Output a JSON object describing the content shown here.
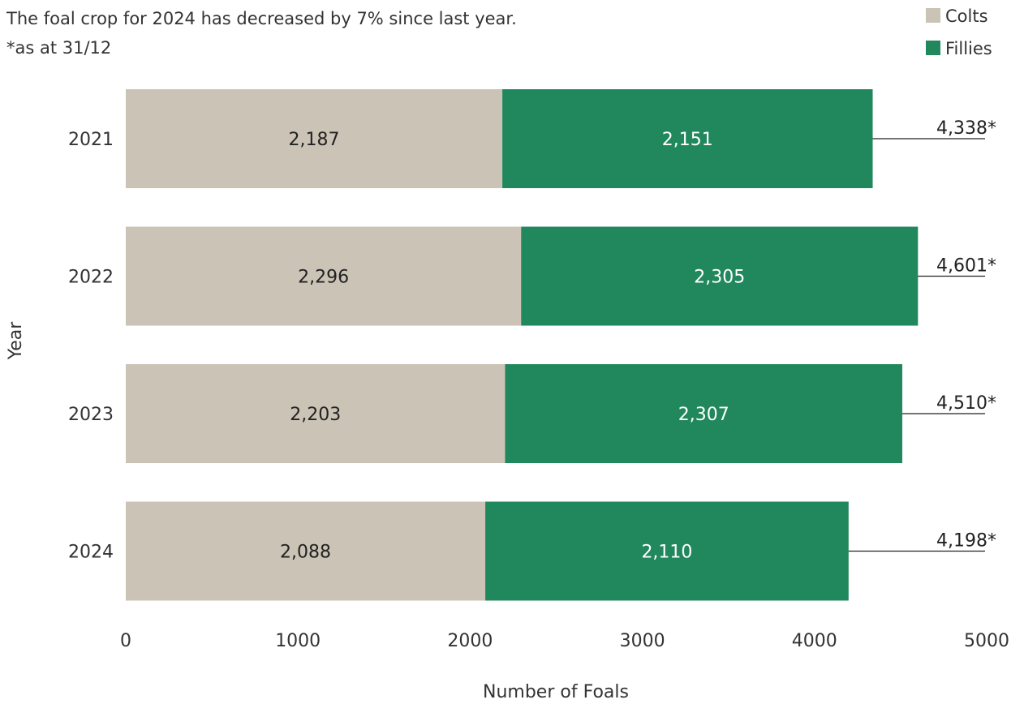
{
  "header": {
    "note": "The foal crop for 2024 has decreased by 7% since last year.",
    "footnote": "*as at 31/12"
  },
  "chart_data": {
    "type": "bar",
    "orientation": "horizontal",
    "stacked": true,
    "categories": [
      "2021",
      "2022",
      "2023",
      "2024"
    ],
    "series": [
      {
        "name": "Colts",
        "values": [
          2187,
          2296,
          2203,
          2088
        ],
        "labels": [
          "2,187",
          "2,296",
          "2,203",
          "2,088"
        ],
        "color": "#cbc3b6",
        "label_color": "#222222"
      },
      {
        "name": "Fillies",
        "values": [
          2151,
          2305,
          2307,
          2110
        ],
        "labels": [
          "2,151",
          "2,305",
          "2,307",
          "2,110"
        ],
        "color": "#21875c",
        "label_color": "#ffffff"
      }
    ],
    "totals": [
      "4,338*",
      "4,601*",
      "4,510*",
      "4,198*"
    ],
    "total_values": [
      4338,
      4601,
      4510,
      4198
    ],
    "xlabel": "Number of Foals",
    "ylabel": "Year",
    "xlim": [
      0,
      5000
    ],
    "xticks": [
      "0",
      "1000",
      "2000",
      "3000",
      "4000",
      "5000"
    ],
    "xtick_values": [
      0,
      1000,
      2000,
      3000,
      4000,
      5000
    ],
    "grid": false,
    "legend_position": "top-right"
  }
}
